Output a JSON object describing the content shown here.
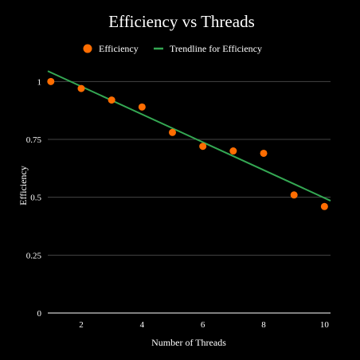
{
  "chart_data": {
    "type": "scatter",
    "title": "Efficiency vs Threads",
    "xlabel": "Number of Threads",
    "ylabel": "Efficiency",
    "xlim": [
      0.9,
      10.2
    ],
    "ylim": [
      0,
      1.07
    ],
    "x_ticks": [
      2,
      4,
      6,
      8,
      10
    ],
    "y_ticks": [
      0,
      0.25,
      0.5,
      0.75,
      1
    ],
    "y_tick_labels": [
      "0",
      "0.25",
      "0.5",
      "0.75",
      "1"
    ],
    "x_tick_labels": [
      "2",
      "4",
      "6",
      "8",
      "10"
    ],
    "grid": "horizontal",
    "legend_position": "top",
    "series": [
      {
        "name": "Efficiency",
        "kind": "points",
        "color": "#ff6d01",
        "x": [
          1,
          2,
          3,
          4,
          5,
          6,
          7,
          8,
          9,
          10
        ],
        "y": [
          1.0,
          0.97,
          0.92,
          0.89,
          0.78,
          0.72,
          0.7,
          0.69,
          0.51,
          0.46
        ]
      },
      {
        "name": "Trendline for Efficiency",
        "kind": "line",
        "color": "#34a853",
        "x": [
          0.9,
          10.2
        ],
        "y": [
          1.045,
          0.485
        ]
      }
    ]
  }
}
